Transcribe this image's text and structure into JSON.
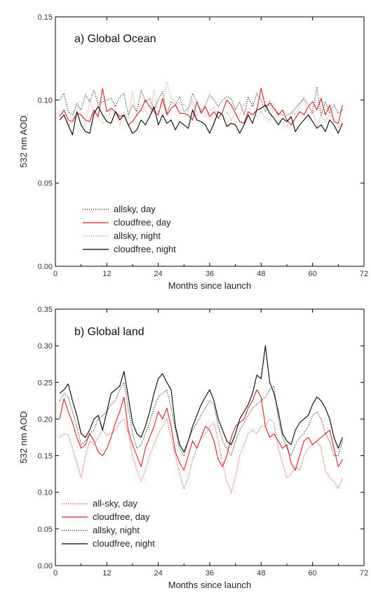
{
  "chart_data": [
    {
      "type": "line",
      "title": "a) Global Ocean",
      "xlabel": "Months since launch",
      "ylabel": "532 nm AOD",
      "xlim": [
        0,
        72
      ],
      "ylim": [
        0.0,
        0.15
      ],
      "x_ticks": [
        "0",
        "12",
        "24",
        "36",
        "48",
        "60",
        "72"
      ],
      "y_ticks": [
        "0.00",
        "0.05",
        "0.10",
        "0.15"
      ],
      "grid": false,
      "legend": "lower-left",
      "x": [
        1,
        2,
        3,
        4,
        5,
        6,
        7,
        8,
        9,
        10,
        11,
        12,
        13,
        14,
        15,
        16,
        17,
        18,
        19,
        20,
        21,
        22,
        23,
        24,
        25,
        26,
        27,
        28,
        29,
        30,
        31,
        32,
        33,
        34,
        35,
        36,
        37,
        38,
        39,
        40,
        41,
        42,
        43,
        44,
        45,
        46,
        47,
        48,
        49,
        50,
        51,
        52,
        53,
        54,
        55,
        56,
        57,
        58,
        59,
        60,
        61,
        62,
        63,
        64,
        65,
        66,
        67
      ],
      "series": [
        {
          "name": "allsky, day",
          "color": "#000000",
          "dash": "1,2",
          "values": [
            0.1,
            0.104,
            0.093,
            0.091,
            0.098,
            0.094,
            0.103,
            0.099,
            0.106,
            0.097,
            0.099,
            0.1,
            0.101,
            0.096,
            0.102,
            0.104,
            0.091,
            0.097,
            0.093,
            0.106,
            0.099,
            0.101,
            0.094,
            0.1,
            0.105,
            0.092,
            0.099,
            0.097,
            0.102,
            0.093,
            0.095,
            0.104,
            0.099,
            0.093,
            0.097,
            0.103,
            0.1,
            0.096,
            0.1,
            0.102,
            0.101,
            0.094,
            0.099,
            0.091,
            0.102,
            0.096,
            0.104,
            0.1,
            0.093,
            0.099,
            0.095,
            0.092,
            0.091,
            0.091,
            0.092,
            0.095,
            0.098,
            0.101,
            0.097,
            0.092,
            0.108,
            0.091,
            0.099,
            0.092,
            0.097,
            0.092,
            0.094
          ]
        },
        {
          "name": "cloudfree, day",
          "color": "#d42020",
          "dash": "",
          "values": [
            0.09,
            0.094,
            0.088,
            0.087,
            0.092,
            0.091,
            0.088,
            0.087,
            0.094,
            0.09,
            0.107,
            0.093,
            0.095,
            0.093,
            0.09,
            0.091,
            0.085,
            0.087,
            0.091,
            0.094,
            0.1,
            0.096,
            0.093,
            0.091,
            0.101,
            0.091,
            0.095,
            0.097,
            0.092,
            0.092,
            0.091,
            0.088,
            0.099,
            0.092,
            0.096,
            0.09,
            0.093,
            0.089,
            0.093,
            0.1,
            0.097,
            0.092,
            0.087,
            0.086,
            0.093,
            0.091,
            0.094,
            0.107,
            0.096,
            0.098,
            0.095,
            0.091,
            0.094,
            0.088,
            0.085,
            0.089,
            0.093,
            0.091,
            0.096,
            0.099,
            0.094,
            0.101,
            0.091,
            0.097,
            0.087,
            0.086,
            0.097
          ]
        },
        {
          "name": "allsky, night",
          "color": "#e67878",
          "dash": "1,2",
          "values": [
            0.094,
            0.091,
            0.084,
            0.088,
            0.097,
            0.092,
            0.084,
            0.1,
            0.093,
            0.089,
            0.086,
            0.087,
            0.094,
            0.091,
            0.085,
            0.093,
            0.089,
            0.105,
            0.09,
            0.097,
            0.094,
            0.089,
            0.106,
            0.093,
            0.097,
            0.111,
            0.101,
            0.099,
            0.092,
            0.098,
            0.093,
            0.101,
            0.09,
            0.095,
            0.09,
            0.093,
            0.096,
            0.09,
            0.091,
            0.093,
            0.088,
            0.092,
            0.09,
            0.098,
            0.091,
            0.099,
            0.09,
            0.093,
            0.089,
            0.087,
            0.098,
            0.088,
            0.086,
            0.084,
            0.093,
            0.091,
            0.097,
            0.102,
            0.088,
            0.094,
            0.084,
            0.091,
            0.087,
            0.091,
            0.089,
            0.083,
            0.09
          ]
        },
        {
          "name": "cloudfree, night",
          "color": "#000000",
          "dash": "",
          "values": [
            0.088,
            0.091,
            0.085,
            0.079,
            0.093,
            0.085,
            0.081,
            0.08,
            0.092,
            0.096,
            0.091,
            0.087,
            0.086,
            0.093,
            0.088,
            0.091,
            0.085,
            0.08,
            0.082,
            0.088,
            0.085,
            0.09,
            0.096,
            0.085,
            0.091,
            0.086,
            0.088,
            0.082,
            0.087,
            0.085,
            0.083,
            0.094,
            0.088,
            0.087,
            0.085,
            0.08,
            0.086,
            0.093,
            0.091,
            0.084,
            0.086,
            0.085,
            0.08,
            0.085,
            0.091,
            0.086,
            0.094,
            0.095,
            0.097,
            0.092,
            0.089,
            0.085,
            0.089,
            0.087,
            0.09,
            0.081,
            0.085,
            0.088,
            0.091,
            0.087,
            0.083,
            0.085,
            0.081,
            0.088,
            0.085,
            0.08,
            0.086
          ]
        }
      ]
    },
    {
      "type": "line",
      "title": "b) Global land",
      "xlabel": "Months since launch",
      "ylabel": "532 nm AOD",
      "xlim": [
        0,
        72
      ],
      "ylim": [
        0.0,
        0.35
      ],
      "x_ticks": [
        "0",
        "12",
        "24",
        "36",
        "48",
        "60",
        "72"
      ],
      "y_ticks": [
        "0.00",
        "0.05",
        "0.10",
        "0.15",
        "0.20",
        "0.25",
        "0.30",
        "0.35"
      ],
      "grid": false,
      "legend": "lower-left",
      "x": [
        1,
        2,
        3,
        4,
        5,
        6,
        7,
        8,
        9,
        10,
        11,
        12,
        13,
        14,
        15,
        16,
        17,
        18,
        19,
        20,
        21,
        22,
        23,
        24,
        25,
        26,
        27,
        28,
        29,
        30,
        31,
        32,
        33,
        34,
        35,
        36,
        37,
        38,
        39,
        40,
        41,
        42,
        43,
        44,
        45,
        46,
        47,
        48,
        49,
        50,
        51,
        52,
        53,
        54,
        55,
        56,
        57,
        58,
        59,
        60,
        61,
        62,
        63,
        64,
        65,
        66,
        67
      ],
      "series": [
        {
          "name": "all-sky, day",
          "color": "#d42020",
          "dash": "1,2",
          "values": [
            0.175,
            0.18,
            0.178,
            0.16,
            0.14,
            0.12,
            0.15,
            0.17,
            0.165,
            0.175,
            0.185,
            0.178,
            0.18,
            0.185,
            0.195,
            0.2,
            0.18,
            0.15,
            0.13,
            0.115,
            0.13,
            0.15,
            0.165,
            0.18,
            0.19,
            0.2,
            0.175,
            0.15,
            0.125,
            0.105,
            0.12,
            0.145,
            0.16,
            0.175,
            0.18,
            0.19,
            0.195,
            0.17,
            0.14,
            0.115,
            0.1,
            0.12,
            0.15,
            0.165,
            0.18,
            0.185,
            0.18,
            0.19,
            0.19,
            0.2,
            0.195,
            0.16,
            0.14,
            0.12,
            0.125,
            0.135,
            0.13,
            0.15,
            0.16,
            0.165,
            0.17,
            0.16,
            0.13,
            0.12,
            0.115,
            0.105,
            0.12
          ]
        },
        {
          "name": "cloudfree, day",
          "color": "#d42020",
          "dash": "",
          "values": [
            0.2,
            0.228,
            0.21,
            0.195,
            0.175,
            0.16,
            0.165,
            0.18,
            0.17,
            0.155,
            0.15,
            0.16,
            0.175,
            0.195,
            0.21,
            0.23,
            0.185,
            0.165,
            0.15,
            0.135,
            0.16,
            0.175,
            0.19,
            0.21,
            0.2,
            0.215,
            0.19,
            0.155,
            0.14,
            0.13,
            0.15,
            0.17,
            0.16,
            0.175,
            0.19,
            0.185,
            0.17,
            0.145,
            0.135,
            0.15,
            0.175,
            0.19,
            0.195,
            0.2,
            0.215,
            0.225,
            0.24,
            0.23,
            0.19,
            0.175,
            0.18,
            0.17,
            0.16,
            0.165,
            0.14,
            0.13,
            0.15,
            0.17,
            0.175,
            0.165,
            0.17,
            0.175,
            0.18,
            0.185,
            0.16,
            0.135,
            0.145
          ]
        },
        {
          "name": "allsky, night",
          "color": "#000000",
          "dash": "1,2",
          "values": [
            0.225,
            0.235,
            0.23,
            0.21,
            0.19,
            0.165,
            0.17,
            0.18,
            0.185,
            0.2,
            0.205,
            0.21,
            0.22,
            0.225,
            0.24,
            0.25,
            0.215,
            0.18,
            0.16,
            0.165,
            0.18,
            0.195,
            0.215,
            0.23,
            0.235,
            0.24,
            0.215,
            0.185,
            0.16,
            0.15,
            0.17,
            0.185,
            0.195,
            0.205,
            0.215,
            0.225,
            0.22,
            0.19,
            0.17,
            0.16,
            0.15,
            0.17,
            0.185,
            0.195,
            0.205,
            0.215,
            0.22,
            0.225,
            0.23,
            0.24,
            0.245,
            0.2,
            0.175,
            0.16,
            0.15,
            0.165,
            0.175,
            0.18,
            0.19,
            0.205,
            0.21,
            0.2,
            0.18,
            0.17,
            0.15,
            0.15,
            0.17
          ]
        },
        {
          "name": "cloudfree, night",
          "color": "#000000",
          "dash": "",
          "values": [
            0.235,
            0.24,
            0.248,
            0.225,
            0.205,
            0.18,
            0.175,
            0.185,
            0.2,
            0.205,
            0.185,
            0.21,
            0.235,
            0.24,
            0.245,
            0.265,
            0.23,
            0.195,
            0.18,
            0.175,
            0.19,
            0.21,
            0.235,
            0.255,
            0.262,
            0.25,
            0.24,
            0.19,
            0.165,
            0.155,
            0.17,
            0.19,
            0.205,
            0.22,
            0.23,
            0.24,
            0.225,
            0.2,
            0.185,
            0.17,
            0.165,
            0.18,
            0.2,
            0.21,
            0.22,
            0.235,
            0.26,
            0.255,
            0.3,
            0.25,
            0.235,
            0.21,
            0.18,
            0.17,
            0.165,
            0.185,
            0.195,
            0.2,
            0.205,
            0.22,
            0.23,
            0.225,
            0.215,
            0.2,
            0.175,
            0.16,
            0.175
          ]
        }
      ]
    }
  ]
}
